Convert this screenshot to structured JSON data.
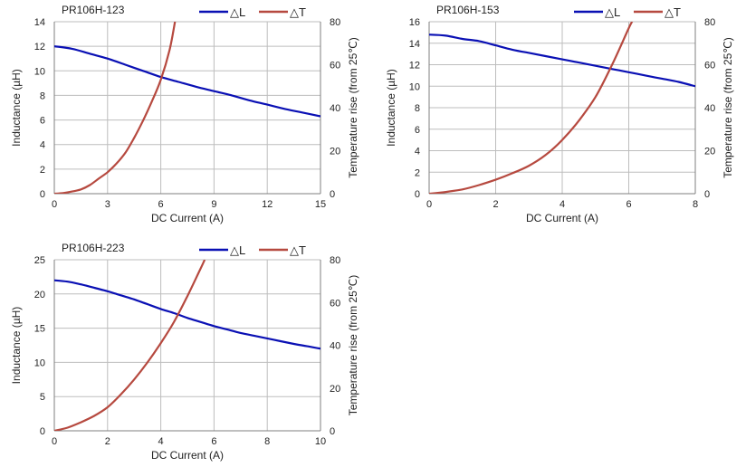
{
  "colors": {
    "inductance": "#0a10b4",
    "temperature": "#b6493f",
    "grid": "#bdbdbd",
    "axis": "#7f7f7f"
  },
  "chart_data": [
    {
      "type": "line",
      "title": "PR106H-123",
      "xlabel": "DC Current (A)",
      "ylabel": "Inductance (µH)",
      "y2label": "Temperature rise (from 25℃)",
      "xlim": [
        0,
        15
      ],
      "xticks": [
        0,
        3,
        6,
        9,
        12,
        15
      ],
      "ylim": [
        0,
        14
      ],
      "yticks": [
        0,
        2,
        4,
        6,
        8,
        10,
        12,
        14
      ],
      "y2lim": [
        0,
        80
      ],
      "y2ticks": [
        0,
        20,
        40,
        60,
        80
      ],
      "grid": true,
      "legend": "top-right",
      "series": [
        {
          "name": "△L",
          "axis": "left",
          "x": [
            0,
            1,
            2,
            3,
            4,
            5,
            6,
            7,
            8,
            9,
            10,
            11,
            12,
            13,
            14,
            15
          ],
          "y": [
            12.0,
            11.8,
            11.4,
            11.0,
            10.5,
            10.0,
            9.5,
            9.1,
            8.7,
            8.35,
            8.0,
            7.6,
            7.25,
            6.9,
            6.6,
            6.3
          ]
        },
        {
          "name": "△T",
          "axis": "right",
          "x": [
            0,
            0.5,
            1,
            1.5,
            2,
            2.5,
            3,
            3.5,
            4,
            4.5,
            5,
            5.5,
            6,
            6.5,
            6.8
          ],
          "y": [
            0,
            0.3,
            1,
            2,
            4,
            7,
            10,
            14,
            19,
            26,
            34,
            43,
            53,
            67,
            80
          ]
        }
      ]
    },
    {
      "type": "line",
      "title": "PR106H-153",
      "xlabel": "DC Current (A)",
      "ylabel": "Inductance (µH)",
      "y2label": "Temperature rise (from 25℃)",
      "xlim": [
        0,
        8
      ],
      "xticks": [
        0,
        2,
        4,
        6,
        8
      ],
      "ylim": [
        0,
        16
      ],
      "yticks": [
        0,
        2,
        4,
        6,
        8,
        10,
        12,
        14,
        16
      ],
      "y2lim": [
        0,
        80
      ],
      "y2ticks": [
        0,
        20,
        40,
        60,
        80
      ],
      "grid": true,
      "legend": "top-right",
      "series": [
        {
          "name": "△L",
          "axis": "left",
          "x": [
            0,
            0.5,
            1,
            1.5,
            2,
            2.5,
            3,
            3.5,
            4,
            4.5,
            5,
            5.5,
            6,
            6.5,
            7,
            7.5,
            8
          ],
          "y": [
            14.8,
            14.7,
            14.4,
            14.2,
            13.8,
            13.4,
            13.1,
            12.8,
            12.5,
            12.2,
            11.9,
            11.6,
            11.3,
            11.0,
            10.7,
            10.4,
            10.0
          ]
        },
        {
          "name": "△T",
          "axis": "right",
          "x": [
            0,
            0.5,
            1,
            1.5,
            2,
            2.5,
            3,
            3.5,
            4,
            4.5,
            5,
            5.5,
            6,
            6.1
          ],
          "y": [
            0,
            0.8,
            2,
            4,
            6.5,
            9.5,
            13,
            18,
            25,
            34,
            45,
            60,
            77,
            80
          ]
        }
      ]
    },
    {
      "type": "line",
      "title": "PR106H-223",
      "xlabel": "DC Current (A)",
      "ylabel": "Inductance (µH)",
      "y2label": "Temperature rise (from 25℃)",
      "xlim": [
        0,
        10
      ],
      "xticks": [
        0,
        2,
        4,
        6,
        8,
        10
      ],
      "ylim": [
        0,
        25
      ],
      "yticks": [
        0,
        5,
        10,
        15,
        20,
        25
      ],
      "y2lim": [
        0,
        80
      ],
      "y2ticks": [
        0,
        20,
        40,
        60,
        80
      ],
      "grid": true,
      "legend": "top-right",
      "series": [
        {
          "name": "△L",
          "axis": "left",
          "x": [
            0,
            0.5,
            1,
            1.5,
            2,
            2.5,
            3,
            3.5,
            4,
            4.5,
            5,
            5.5,
            6,
            6.5,
            7,
            7.5,
            8,
            8.5,
            9,
            9.5,
            10
          ],
          "y": [
            22.0,
            21.8,
            21.4,
            20.9,
            20.4,
            19.8,
            19.2,
            18.5,
            17.8,
            17.2,
            16.5,
            15.9,
            15.3,
            14.8,
            14.3,
            13.9,
            13.5,
            13.1,
            12.7,
            12.35,
            12.0
          ]
        },
        {
          "name": "△T",
          "axis": "right",
          "x": [
            0,
            0.5,
            1,
            1.5,
            2,
            2.5,
            3,
            3.5,
            4,
            4.5,
            5,
            5.5,
            5.65
          ],
          "y": [
            0,
            1.5,
            4,
            7,
            11,
            17,
            24,
            32,
            41,
            51,
            63,
            76,
            80
          ]
        }
      ]
    }
  ]
}
